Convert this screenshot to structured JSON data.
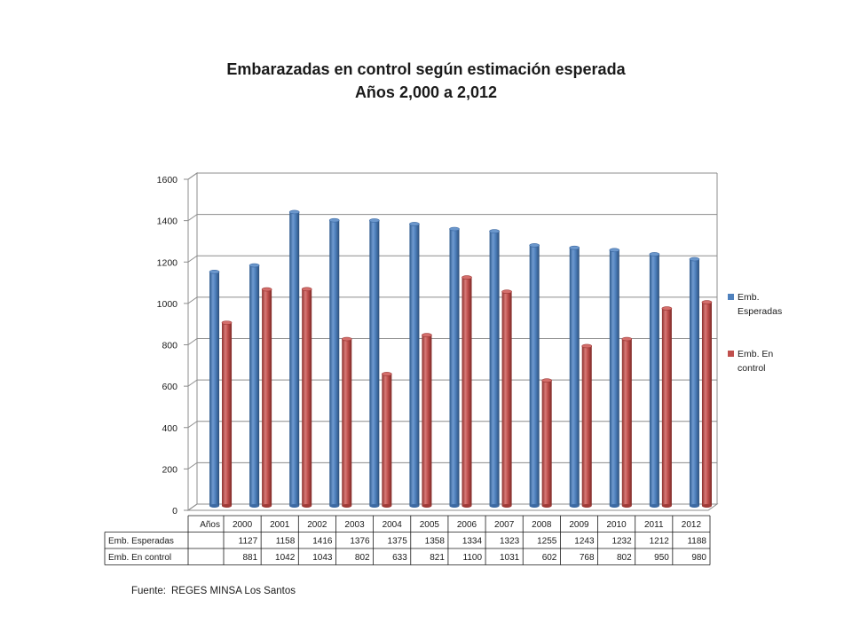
{
  "title_line1": "Embarazadas   en control según  estimación esperada",
  "title_line2": "Años 2,000 a 2,012",
  "source_label": "Fuente:",
  "source_text": "REGES MINSA Los Santos",
  "chart_data": {
    "type": "bar",
    "title": "Embarazadas   en control según  estimación esperada Años 2,000 a 2,012",
    "categories": [
      "2000",
      "2001",
      "2002",
      "2003",
      "2004",
      "2005",
      "2006",
      "2007",
      "2008",
      "2009",
      "2010",
      "2011",
      "2012"
    ],
    "category_header": "Años",
    "series": [
      {
        "name": "Emb. Esperadas",
        "legend_lines": [
          "Emb.",
          "Esperadas"
        ],
        "values": [
          1127,
          1158,
          1416,
          1376,
          1375,
          1358,
          1334,
          1323,
          1255,
          1243,
          1232,
          1212,
          1188
        ],
        "color": "#4f81bd"
      },
      {
        "name": "Emb. En control",
        "legend_lines": [
          "Emb. En",
          "control"
        ],
        "values": [
          881,
          1042,
          1043,
          802,
          633,
          821,
          1100,
          1031,
          602,
          768,
          802,
          950,
          980
        ],
        "color": "#c0504d"
      }
    ],
    "ylim": [
      0,
      1600
    ],
    "yticks": [
      0,
      200,
      400,
      600,
      800,
      1000,
      1200,
      1400,
      1600
    ],
    "grid": true,
    "legend_position": "right",
    "data_table": true
  }
}
